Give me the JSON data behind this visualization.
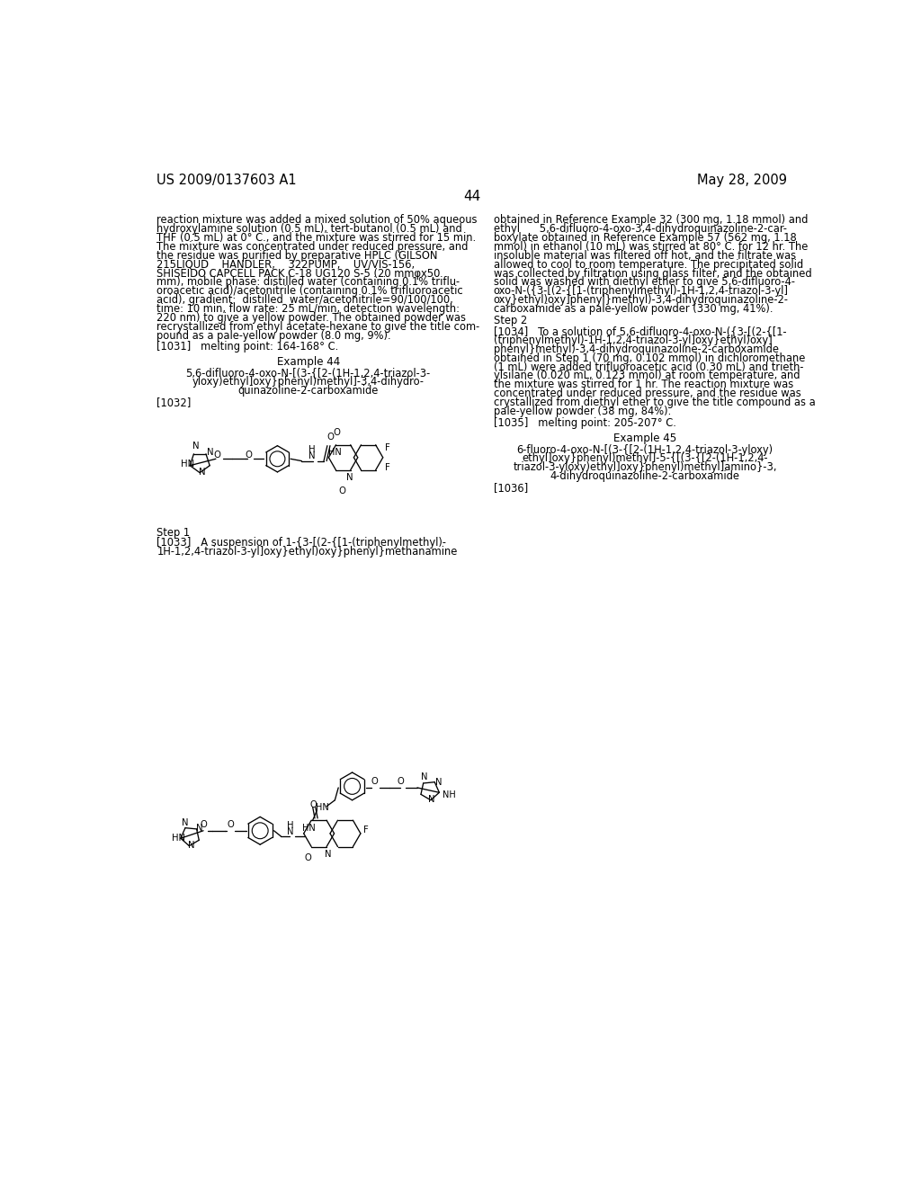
{
  "bg": "#ffffff",
  "header_left": "US 2009/0137603 A1",
  "header_right": "May 28, 2009",
  "page_num": "44",
  "left_col_lines": [
    "reaction mixture was added a mixed solution of 50% aqueous",
    "hydroxylamine solution (0.5 mL), tert-butanol (0.5 mL) and",
    "THF (0.5 mL) at 0° C., and the mixture was stirred for 15 min.",
    "The mixture was concentrated under reduced pressure, and",
    "the residue was purified by preparative HPLC (GILSON",
    "215LIQUD    HANDLER,    322PUMP,    UV/VIS-156,",
    "SHISEIDO CAPCELL PACK C-18 UG120 S-5 (20 mmφx50",
    "mm), mobile phase: distilled water (containing 0.1% triflu-",
    "oroacetic acid)/acetonitrile (containing 0.1% trifluoroacetic",
    "acid), gradient:  distilled  water/acetonitrile=90/100/100,",
    "time: 10 min, flow rate: 25 mL/min, detection wavelength:",
    "220 nm) to give a yellow powder. The obtained powder was",
    "recrystallized from ethyl acetate-hexane to give the title com-",
    "pound as a pale-yellow powder (8.0 mg, 9%)."
  ],
  "ref1031": "[1031]   melting point: 164-168° C.",
  "ex44_title": "Example 44",
  "ex44_subtitle_lines": [
    "5,6-difluoro-4-oxo-N-[(3-{[2-(1H-1,2,4-triazol-3-",
    "yloxy)ethyl]oxy}phenyl)methyl]-3,4-dihydro-",
    "quinazoline-2-carboxamide"
  ],
  "ref1032": "[1032]",
  "step1_label": "Step 1",
  "ref1033_lines": [
    "[1033]   A suspension of 1-{3-[(2-{[1-(triphenylmethyl)-",
    "1H-1,2,4-triazol-3-yl]oxy}ethyl)oxy}phenyl}methanamine"
  ],
  "right_col_lines": [
    "obtained in Reference Example 32 (300 mg, 1.18 mmol) and",
    "ethyl      5,6-difluoro-4-oxo-3,4-dihydroquinazoline-2-car-",
    "boxylate obtained in Reference Example 57 (562 mg, 1.18",
    "mmol) in ethanol (10 mL) was stirred at 80° C. for 12 hr. The",
    "insoluble material was filtered off hot, and the filtrate was",
    "allowed to cool to room temperature. The precipitated solid",
    "was collected by filtration using glass filter, and the obtained",
    "solid was washed with diethyl ether to give 5,6-difluoro-4-",
    "oxo-N-({3-[(2-{[1-(triphenylmethyl)-1H-1,2,4-triazol-3-yl]",
    "oxy}ethyl)oxy]phenyl}methyl)-3,4-dihydroquinazoline-2-",
    "carboxamide as a pale-yellow powder (330 mg, 41%)."
  ],
  "step2_label": "Step 2",
  "ref1034_lines": [
    "[1034]   To a solution of 5,6-difluoro-4-oxo-N-({3-[(2-{[1-",
    "(triphenylmethyl)-1H-1,2,4-triazol-3-yl]oxy}ethyl)oxy]",
    "phenyl}methyl)-3,4-dihydroquinazoline-2-carboxamide",
    "obtained in Step 1 (70 mg, 0.102 mmol) in dichloromethane",
    "(1 mL) were added trifluoroacetic acid (0.30 mL) and trieth-",
    "ylsilane (0.020 mL, 0.123 mmol) at room temperature, and",
    "the mixture was stirred for 1 hr. The reaction mixture was",
    "concentrated under reduced pressure, and the residue was",
    "crystallized from diethyl ether to give the title compound as a",
    "pale-yellow powder (38 mg, 84%)."
  ],
  "ref1035": "[1035]   melting point: 205-207° C.",
  "ex45_title": "Example 45",
  "ex45_subtitle_lines": [
    "6-fluoro-4-oxo-N-[(3-{[2-(1H-1,2,4-triazol-3-yloxy)",
    "ethyl]oxy}phenyl)methyl]-5-{[(3-{[2-(1H-1,2,4-",
    "triazol-3-yloxy)ethyl]oxy}phenyl)methyl]amino}-3,",
    "4-dihydroquinazoline-2-carboxamide"
  ],
  "ref1036": "[1036]"
}
